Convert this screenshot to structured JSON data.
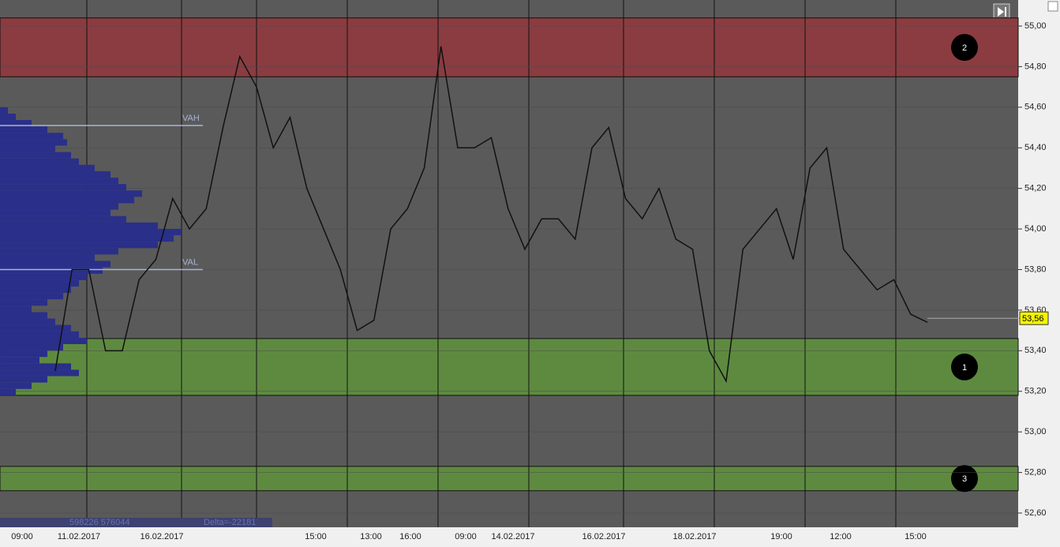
{
  "y_axis": {
    "range": [
      52.52,
      55.13
    ],
    "ticks": [
      {
        "value": 55.0,
        "label": "55,00"
      },
      {
        "value": 54.8,
        "label": "54,80"
      },
      {
        "value": 54.6,
        "label": "54,60"
      },
      {
        "value": 54.4,
        "label": "54,40"
      },
      {
        "value": 54.2,
        "label": "54,20"
      },
      {
        "value": 54.0,
        "label": "54,00"
      },
      {
        "value": 53.8,
        "label": "53,80"
      },
      {
        "value": 53.6,
        "label": "53,60"
      },
      {
        "value": 53.4,
        "label": "53,40"
      },
      {
        "value": 53.2,
        "label": "53,20"
      },
      {
        "value": 53.0,
        "label": "53,00"
      },
      {
        "value": 52.8,
        "label": "52,80"
      },
      {
        "value": 52.6,
        "label": "52,60"
      }
    ]
  },
  "zones": [
    {
      "label": "2",
      "top": 55.04,
      "bottom": 54.75,
      "color": "#8b3c40"
    },
    {
      "label": "1",
      "top": 53.46,
      "bottom": 53.18,
      "color": "#5e8a40"
    },
    {
      "label": "3",
      "top": 52.83,
      "bottom": 52.71,
      "color": "#5e8a40"
    }
  ],
  "levels": [
    {
      "label": "VAH",
      "value": 54.51
    },
    {
      "label": "VAL",
      "value": 53.8
    }
  ],
  "current_price": {
    "value": 53.56,
    "label": "53,56"
  },
  "volume_profile": {
    "top": 54.6,
    "bottom": 53.18,
    "values": [
      10,
      20,
      40,
      60,
      80,
      85,
      70,
      90,
      100,
      120,
      140,
      150,
      160,
      180,
      170,
      150,
      140,
      160,
      200,
      230,
      220,
      200,
      150,
      120,
      140,
      130,
      110,
      100,
      90,
      80,
      60,
      40,
      60,
      70,
      90,
      100,
      110,
      80,
      60,
      50,
      90,
      100,
      60,
      40,
      20
    ]
  },
  "price": [
    53.3,
    53.8,
    53.8,
    53.4,
    53.4,
    53.75,
    53.85,
    54.15,
    54.0,
    54.1,
    54.5,
    54.85,
    54.7,
    54.4,
    54.55,
    54.2,
    54.0,
    53.8,
    53.5,
    53.55,
    54.0,
    54.1,
    54.3,
    54.9,
    54.4,
    54.4,
    54.45,
    54.1,
    53.9,
    54.05,
    54.05,
    53.95,
    54.4,
    54.5,
    54.15,
    54.05,
    54.2,
    53.95,
    53.9,
    53.4,
    53.25,
    53.9,
    54.0,
    54.1,
    53.85,
    54.3,
    54.4,
    53.9,
    53.8,
    53.7,
    53.75,
    53.58,
    53.54
  ],
  "stats": {
    "volumes": "598226 576044",
    "delta": "Delta=-22181"
  },
  "x_axis": {
    "labels": [
      "09:00",
      "11.02.2017",
      "16.02.2017",
      "15:00",
      "13:00",
      "16:00",
      "09:00",
      "14.02.2017",
      "16.02.2017",
      "18.02.2017",
      "19:00",
      "12:00",
      "15:00"
    ]
  }
}
